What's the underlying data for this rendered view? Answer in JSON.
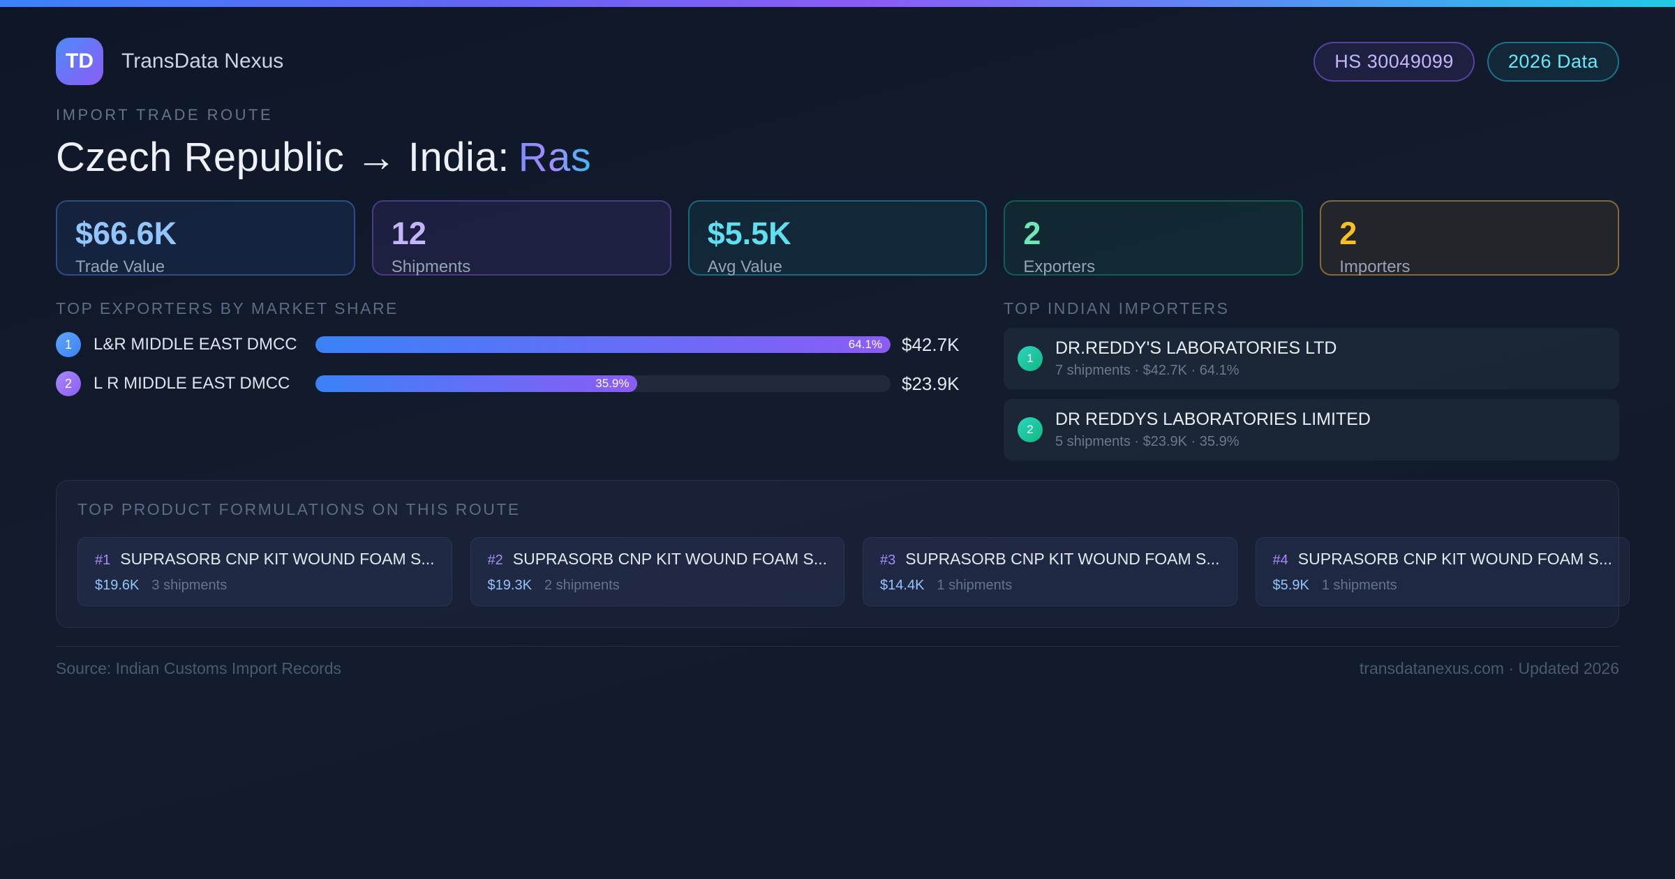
{
  "header": {
    "logo_text": "TD",
    "brand": "TransData Nexus",
    "hs_badge": "HS 30049099",
    "year_badge": "2026 Data"
  },
  "hero": {
    "eyebrow": "IMPORT TRADE ROUTE",
    "title_main": "Czech Republic → India:",
    "title_accent": "Ras"
  },
  "stats": {
    "cards": [
      {
        "value": "$66.6K",
        "label": "Trade Value",
        "accent": "#93c5fd"
      },
      {
        "value": "12",
        "label": "Shipments",
        "accent": "#c4b5fd"
      },
      {
        "value": "$5.5K",
        "label": "Avg Value",
        "accent": "#67e8f9"
      },
      {
        "value": "2",
        "label": "Exporters",
        "accent": "#6ee7b7"
      },
      {
        "value": "2",
        "label": "Importers",
        "accent": "#fbbf24"
      }
    ]
  },
  "exporters": {
    "heading": "TOP EXPORTERS BY MARKET SHARE",
    "rows": [
      {
        "rank": "1",
        "name": "L&R MIDDLE EAST DMCC",
        "share": "64.1%",
        "value": "$42.7K",
        "bar_width": "100%"
      },
      {
        "rank": "2",
        "name": "L R MIDDLE EAST DMCC",
        "share": "35.9%",
        "value": "$23.9K",
        "bar_width": "56%"
      }
    ]
  },
  "importers": {
    "heading": "TOP INDIAN IMPORTERS",
    "rows": [
      {
        "rank": "1",
        "name": "DR.REDDY'S LABORATORIES LTD",
        "detail": "7 shipments · $42.7K · 64.1%"
      },
      {
        "rank": "2",
        "name": "DR REDDYS LABORATORIES LIMITED",
        "detail": "5 shipments · $23.9K · 35.9%"
      }
    ]
  },
  "products": {
    "heading": "TOP PRODUCT FORMULATIONS ON THIS ROUTE",
    "cards": [
      {
        "rank": "#1",
        "name": "SUPRASORB CNP KIT WOUND FOAM S...",
        "value": "$19.6K",
        "shipments": "3 shipments"
      },
      {
        "rank": "#2",
        "name": "SUPRASORB CNP KIT WOUND FOAM S...",
        "value": "$19.3K",
        "shipments": "2 shipments"
      },
      {
        "rank": "#3",
        "name": "SUPRASORB CNP KIT WOUND FOAM S...",
        "value": "$14.4K",
        "shipments": "1 shipments"
      },
      {
        "rank": "#4",
        "name": "SUPRASORB CNP KIT WOUND FOAM S...",
        "value": "$5.9K",
        "shipments": "1 shipments"
      }
    ]
  },
  "footer": {
    "source": "Source: Indian Customs Import Records",
    "site": "transdatanexus.com · Updated 2026"
  },
  "colors": {
    "topbar_gradient": [
      "#3b82f6",
      "#8b5cf6",
      "#22c8e6"
    ],
    "bar_gradient": [
      "#3b82f6",
      "#8b5cf6"
    ],
    "importer_badge": "#10b981",
    "hs_badge_text": "#c4b5fd",
    "year_badge_text": "#67e8f9"
  }
}
